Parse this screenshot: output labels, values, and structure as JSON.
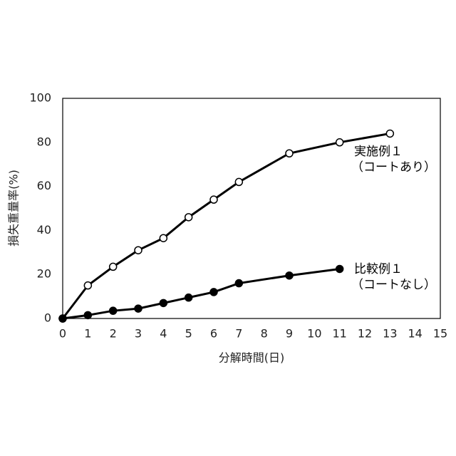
{
  "chart_data": {
    "type": "line",
    "x_label": "分解時間(日)",
    "y_label": "損失重量率(%)",
    "xlim": [
      0,
      15
    ],
    "xticks": [
      0,
      1,
      2,
      3,
      4,
      5,
      6,
      7,
      8,
      9,
      10,
      11,
      12,
      13,
      14,
      15
    ],
    "ylim": [
      0,
      100
    ],
    "yticks": [
      0,
      20,
      40,
      60,
      80,
      100
    ],
    "grid": false,
    "series": [
      {
        "name": "実施例１",
        "label": "（コートあり）",
        "color": "#000000",
        "marker": "open",
        "x": [
          0,
          1,
          2,
          3,
          4,
          5,
          6,
          7,
          9,
          11,
          13
        ],
        "values": [
          0,
          15,
          23.5,
          31,
          36.5,
          46,
          54,
          62,
          75,
          80,
          84
        ]
      },
      {
        "name": "比較例１",
        "label": "（コートなし）",
        "color": "#000000",
        "marker": "filled",
        "x": [
          0,
          1,
          2,
          3,
          4,
          5,
          6,
          7,
          9,
          11
        ],
        "values": [
          0,
          1.5,
          3.5,
          4.5,
          7,
          9.5,
          12,
          16,
          19.5,
          22.5
        ]
      }
    ]
  }
}
